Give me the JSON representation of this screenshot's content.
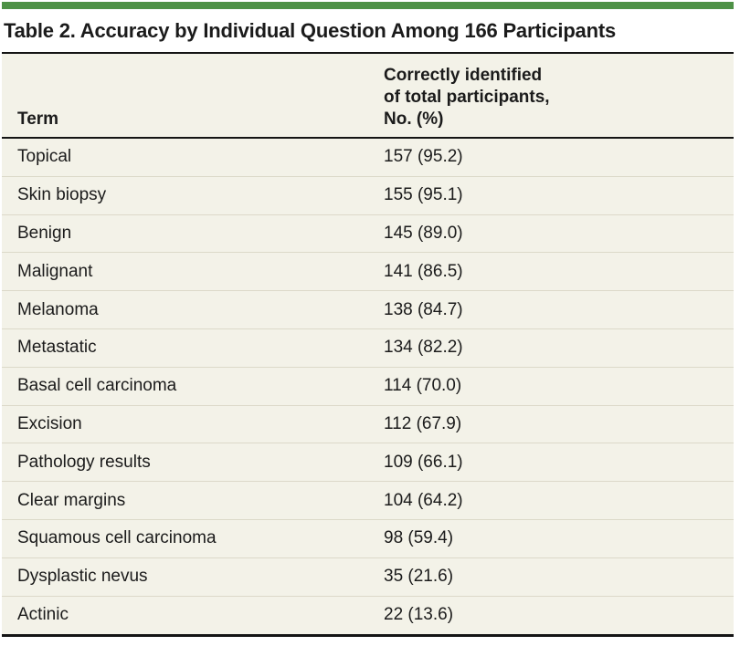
{
  "title": "Table 2. Accuracy by Individual Question Among 166 Participants",
  "table": {
    "col1_header": "Term",
    "col2_header": "Correctly identified\nof total participants,\nNo. (%)",
    "rows": [
      {
        "term": "Topical",
        "value": "157 (95.2)"
      },
      {
        "term": "Skin biopsy",
        "value": "155 (95.1)"
      },
      {
        "term": "Benign",
        "value": "145 (89.0)"
      },
      {
        "term": "Malignant",
        "value": "141 (86.5)"
      },
      {
        "term": "Melanoma",
        "value": "138 (84.7)"
      },
      {
        "term": "Metastatic",
        "value": "134 (82.2)"
      },
      {
        "term": "Basal cell carcinoma",
        "value": "114 (70.0)"
      },
      {
        "term": "Excision",
        "value": "112 (67.9)"
      },
      {
        "term": "Pathology results",
        "value": "109 (66.1)"
      },
      {
        "term": "Clear margins",
        "value": "104 (64.2)"
      },
      {
        "term": "Squamous cell carcinoma",
        "value": "98 (59.4)"
      },
      {
        "term": "Dysplastic nevus",
        "value": "35 (21.6)"
      },
      {
        "term": "Actinic",
        "value": "22 (13.6)"
      }
    ]
  },
  "colors": {
    "accent_green": "#4e9146",
    "table_background": "#f3f2e8",
    "row_divider": "#dcd9c9",
    "rule_black": "#141414",
    "text": "#1b1b1b"
  }
}
